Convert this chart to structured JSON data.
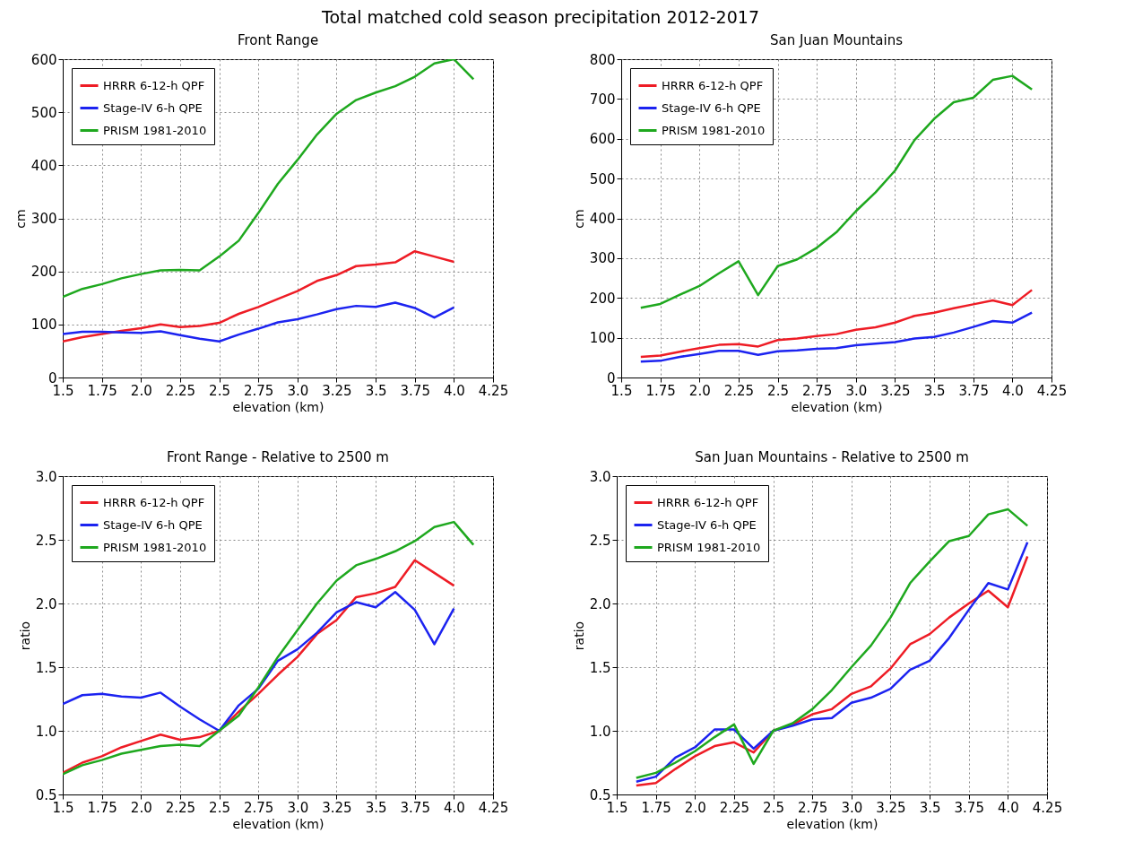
{
  "chart_data": [
    {
      "type": "line",
      "title": "Front Range",
      "annotations": [
        "Total matched cold season precipitation 2012-2017"
      ],
      "xlabel": "elevation (km)",
      "ylabel": "cm",
      "xlim": [
        1.5,
        4.25
      ],
      "ylim": [
        0,
        600
      ],
      "xticks": [
        1.5,
        1.75,
        {
          "value": 2,
          "label": "2.0"
        },
        2.25,
        2.5,
        2.75,
        {
          "value": 3,
          "label": "3.0"
        },
        3.25,
        3.5,
        3.75,
        {
          "value": 4,
          "label": "4.0"
        },
        4.25
      ],
      "yticks": [
        0,
        100,
        200,
        300,
        400,
        500,
        600
      ],
      "grid": true,
      "legend": "top left",
      "line_style": "solid",
      "series": [
        {
          "name": "HRRR 6-12-h QPF",
          "color": "#ee1c25",
          "x": [
            1.5,
            1.625,
            1.75,
            1.875,
            2.0,
            2.125,
            2.25,
            2.375,
            2.5,
            2.625,
            2.75,
            2.875,
            3.0,
            3.125,
            3.25,
            3.375,
            3.5,
            3.625,
            3.75,
            3.875,
            4.0
          ],
          "values": [
            68,
            76,
            82,
            88,
            93,
            100,
            95,
            97,
            103,
            120,
            133,
            148,
            163,
            182,
            193,
            210,
            213,
            217,
            238,
            228,
            218
          ]
        },
        {
          "name": "Stage-IV 6-h QPE",
          "color": "#1c23f0",
          "x": [
            1.5,
            1.625,
            1.75,
            1.875,
            2.0,
            2.125,
            2.25,
            2.375,
            2.5,
            2.625,
            2.75,
            2.875,
            3.0,
            3.125,
            3.25,
            3.375,
            3.5,
            3.625,
            3.75,
            3.875,
            4.0
          ],
          "values": [
            82,
            86,
            86,
            85,
            84,
            87,
            80,
            73,
            68,
            81,
            92,
            104,
            110,
            119,
            129,
            135,
            133,
            141,
            131,
            113,
            132
          ]
        },
        {
          "name": "PRISM 1981-2010",
          "color": "#1ea81e",
          "x": [
            1.5,
            1.625,
            1.75,
            1.875,
            2.0,
            2.125,
            2.25,
            2.375,
            2.5,
            2.625,
            2.75,
            2.875,
            3.0,
            3.125,
            3.25,
            3.375,
            3.5,
            3.625,
            3.75,
            3.875,
            4.0,
            4.125
          ],
          "values": [
            152,
            167,
            176,
            187,
            195,
            202,
            203,
            202,
            228,
            258,
            310,
            365,
            410,
            458,
            497,
            523,
            537,
            549,
            567,
            592,
            600,
            562
          ]
        }
      ]
    },
    {
      "type": "line",
      "title": "San Juan Mountains",
      "xlabel": "elevation (km)",
      "ylabel": "cm",
      "xlim": [
        1.5,
        4.25
      ],
      "ylim": [
        0,
        800
      ],
      "xticks": [
        1.5,
        1.75,
        {
          "value": 2,
          "label": "2.0"
        },
        2.25,
        2.5,
        2.75,
        {
          "value": 3,
          "label": "3.0"
        },
        3.25,
        3.5,
        3.75,
        {
          "value": 4,
          "label": "4.0"
        },
        4.25
      ],
      "yticks": [
        0,
        100,
        200,
        300,
        400,
        500,
        600,
        700,
        800
      ],
      "grid": true,
      "legend": "top left",
      "line_style": "solid",
      "series": [
        {
          "name": "HRRR 6-12-h QPF",
          "color": "#ee1c25",
          "x": [
            1.625,
            1.75,
            1.875,
            2.0,
            2.125,
            2.25,
            2.375,
            2.5,
            2.625,
            2.75,
            2.875,
            3.0,
            3.125,
            3.25,
            3.375,
            3.5,
            3.625,
            3.75,
            3.875,
            4.0,
            4.125
          ],
          "values": [
            52,
            55,
            65,
            74,
            82,
            84,
            78,
            94,
            98,
            104,
            109,
            120,
            126,
            138,
            155,
            163,
            174,
            184,
            194,
            182,
            220
          ]
        },
        {
          "name": "Stage-IV 6-h QPE",
          "color": "#1c23f0",
          "x": [
            1.625,
            1.75,
            1.875,
            2.0,
            2.125,
            2.25,
            2.375,
            2.5,
            2.625,
            2.75,
            2.875,
            3.0,
            3.125,
            3.25,
            3.375,
            3.5,
            3.625,
            3.75,
            3.875,
            4.0,
            4.125
          ],
          "values": [
            40,
            42,
            52,
            59,
            67,
            67,
            57,
            66,
            68,
            72,
            74,
            81,
            85,
            89,
            98,
            102,
            113,
            127,
            142,
            138,
            163
          ]
        },
        {
          "name": "PRISM 1981-2010",
          "color": "#1ea81e",
          "x": [
            1.625,
            1.75,
            1.875,
            2.0,
            2.125,
            2.25,
            2.375,
            2.5,
            2.625,
            2.75,
            2.875,
            3.0,
            3.125,
            3.25,
            3.375,
            3.5,
            3.625,
            3.75,
            3.875,
            4.0,
            4.125
          ],
          "values": [
            175,
            185,
            208,
            230,
            262,
            292,
            207,
            280,
            297,
            326,
            365,
            418,
            465,
            520,
            597,
            650,
            692,
            703,
            748,
            758,
            724
          ]
        }
      ]
    },
    {
      "type": "line",
      "title": "Front Range - Relative to 2500 m",
      "xlabel": "elevation (km)",
      "ylabel": "ratio",
      "xlim": [
        1.5,
        4.25
      ],
      "ylim": [
        0.5,
        3.0
      ],
      "xticks": [
        1.5,
        1.75,
        {
          "value": 2,
          "label": "2.0"
        },
        2.25,
        2.5,
        2.75,
        {
          "value": 3,
          "label": "3.0"
        },
        3.25,
        3.5,
        3.75,
        {
          "value": 4,
          "label": "4.0"
        },
        4.25
      ],
      "yticks": [
        0.5,
        {
          "value": 1,
          "label": "1.0"
        },
        1.5,
        {
          "value": 2,
          "label": "2.0"
        },
        2.5,
        {
          "value": 3,
          "label": "3.0"
        }
      ],
      "grid": true,
      "legend": "top left",
      "line_style": "solid",
      "series": [
        {
          "name": "HRRR 6-12-h QPF",
          "color": "#ee1c25",
          "x": [
            1.5,
            1.625,
            1.75,
            1.875,
            2.0,
            2.125,
            2.25,
            2.375,
            2.5,
            2.625,
            2.75,
            2.875,
            3.0,
            3.125,
            3.25,
            3.375,
            3.5,
            3.625,
            3.75,
            3.875,
            4.0
          ],
          "values": [
            0.67,
            0.75,
            0.8,
            0.87,
            0.92,
            0.97,
            0.93,
            0.95,
            1.0,
            1.15,
            1.29,
            1.44,
            1.58,
            1.76,
            1.87,
            2.05,
            2.08,
            2.13,
            2.34,
            2.24,
            2.14
          ]
        },
        {
          "name": "Stage-IV 6-h QPE",
          "color": "#1c23f0",
          "x": [
            1.5,
            1.625,
            1.75,
            1.875,
            2.0,
            2.125,
            2.25,
            2.375,
            2.5,
            2.625,
            2.75,
            2.875,
            3.0,
            3.125,
            3.25,
            3.375,
            3.5,
            3.625,
            3.75,
            3.875,
            4.0
          ],
          "values": [
            1.21,
            1.28,
            1.29,
            1.27,
            1.26,
            1.3,
            1.19,
            1.09,
            1.0,
            1.2,
            1.33,
            1.55,
            1.64,
            1.77,
            1.93,
            2.01,
            1.97,
            2.09,
            1.95,
            1.68,
            1.96
          ]
        },
        {
          "name": "PRISM 1981-2010",
          "color": "#1ea81e",
          "x": [
            1.5,
            1.625,
            1.75,
            1.875,
            2.0,
            2.125,
            2.25,
            2.375,
            2.5,
            2.625,
            2.75,
            2.875,
            3.0,
            3.125,
            3.25,
            3.375,
            3.5,
            3.625,
            3.75,
            3.875,
            4.0,
            4.125
          ],
          "values": [
            0.66,
            0.73,
            0.77,
            0.82,
            0.85,
            0.88,
            0.89,
            0.88,
            1.0,
            1.12,
            1.34,
            1.58,
            1.79,
            2.0,
            2.18,
            2.3,
            2.35,
            2.41,
            2.49,
            2.6,
            2.64,
            2.46
          ]
        }
      ]
    },
    {
      "type": "line",
      "title": "San Juan Mountains - Relative to 2500 m",
      "xlabel": "elevation (km)",
      "ylabel": "ratio",
      "xlim": [
        1.5,
        4.25
      ],
      "ylim": [
        0.5,
        3.0
      ],
      "xticks": [
        1.5,
        1.75,
        {
          "value": 2,
          "label": "2.0"
        },
        2.25,
        2.5,
        2.75,
        {
          "value": 3,
          "label": "3.0"
        },
        3.25,
        3.5,
        3.75,
        {
          "value": 4,
          "label": "4.0"
        },
        4.25
      ],
      "yticks": [
        0.5,
        {
          "value": 1,
          "label": "1.0"
        },
        1.5,
        {
          "value": 2,
          "label": "2.0"
        },
        2.5,
        {
          "value": 3,
          "label": "3.0"
        }
      ],
      "grid": true,
      "legend": "top left",
      "line_style": "solid",
      "series": [
        {
          "name": "HRRR 6-12-h QPF",
          "color": "#ee1c25",
          "x": [
            1.625,
            1.75,
            1.875,
            2.0,
            2.125,
            2.25,
            2.375,
            2.5,
            2.625,
            2.75,
            2.875,
            3.0,
            3.125,
            3.25,
            3.375,
            3.5,
            3.625,
            3.75,
            3.875,
            4.0,
            4.125
          ],
          "values": [
            0.57,
            0.59,
            0.7,
            0.8,
            0.88,
            0.91,
            0.83,
            1.0,
            1.05,
            1.13,
            1.17,
            1.29,
            1.35,
            1.49,
            1.68,
            1.76,
            1.89,
            2.0,
            2.1,
            1.97,
            2.37
          ]
        },
        {
          "name": "Stage-IV 6-h QPE",
          "color": "#1c23f0",
          "x": [
            1.625,
            1.75,
            1.875,
            2.0,
            2.125,
            2.25,
            2.375,
            2.5,
            2.625,
            2.75,
            2.875,
            3.0,
            3.125,
            3.25,
            3.375,
            3.5,
            3.625,
            3.75,
            3.875,
            4.0,
            4.125
          ],
          "values": [
            0.6,
            0.64,
            0.79,
            0.87,
            1.01,
            1.01,
            0.86,
            1.0,
            1.04,
            1.09,
            1.1,
            1.22,
            1.26,
            1.33,
            1.48,
            1.55,
            1.73,
            1.95,
            2.16,
            2.11,
            2.48
          ]
        },
        {
          "name": "PRISM 1981-2010",
          "color": "#1ea81e",
          "x": [
            1.625,
            1.75,
            1.875,
            2.0,
            2.125,
            2.25,
            2.375,
            2.5,
            2.625,
            2.75,
            2.875,
            3.0,
            3.125,
            3.25,
            3.375,
            3.5,
            3.625,
            3.75,
            3.875,
            4.0,
            4.125
          ],
          "values": [
            0.63,
            0.67,
            0.75,
            0.84,
            0.95,
            1.05,
            0.74,
            1.0,
            1.06,
            1.17,
            1.32,
            1.5,
            1.67,
            1.89,
            2.16,
            2.33,
            2.49,
            2.53,
            2.7,
            2.74,
            2.61
          ]
        }
      ]
    }
  ]
}
